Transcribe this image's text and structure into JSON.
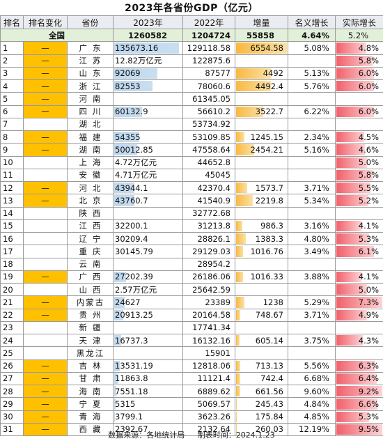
{
  "title": "2023年各省份GDP（亿元）",
  "headers": {
    "rank": "排名",
    "rank_change": "排名变化",
    "province": "省份",
    "gdp_2023": "2023年",
    "gdp_2022": "2022年",
    "increase": "增量",
    "nominal_growth": "名义增长",
    "real_growth": "实际增长"
  },
  "total": {
    "label": "全国",
    "gdp_2023": "1260582",
    "gdp_2022": "1204724",
    "increase": "55858",
    "nominal_growth": "4.64%",
    "real_growth": "5.2%"
  },
  "rows": [
    {
      "rank": "1",
      "change": "—",
      "province": "广东",
      "gdp_2023": "135673.16",
      "gdp_2022": "129118.58",
      "increase": "6554.58",
      "nominal_growth": "5.08%",
      "real_growth": "4.8%",
      "gdp_bar": 0.96,
      "inc_bar": 1.0,
      "real_bar": 0.66
    },
    {
      "rank": "2",
      "change": "—",
      "province": "江苏",
      "gdp_2023": "12.82万亿元",
      "gdp_2022": "122875.6",
      "increase": "",
      "nominal_growth": "",
      "real_growth": "5.8%",
      "gdp_bar": 0.0,
      "inc_bar": 0.0,
      "real_bar": 0.79
    },
    {
      "rank": "3",
      "change": "—",
      "province": "山东",
      "gdp_2023": "92069",
      "gdp_2022": "87577",
      "increase": "4492",
      "nominal_growth": "5.13%",
      "real_growth": "6.0%",
      "gdp_bar": 0.65,
      "inc_bar": 0.69,
      "real_bar": 0.82
    },
    {
      "rank": "4",
      "change": "—",
      "province": "浙江",
      "gdp_2023": "82553",
      "gdp_2022": "78060.6",
      "increase": "4492.4",
      "nominal_growth": "5.76%",
      "real_growth": "6.0%",
      "gdp_bar": 0.58,
      "inc_bar": 0.69,
      "real_bar": 0.82
    },
    {
      "rank": "5",
      "change": "—",
      "province": "河南",
      "gdp_2023": "",
      "gdp_2022": "61345.05",
      "increase": "",
      "nominal_growth": "",
      "real_growth": "",
      "gdp_bar": 0.0,
      "inc_bar": 0.0,
      "real_bar": 0.0
    },
    {
      "rank": "6",
      "change": "—",
      "province": "四川",
      "gdp_2023": "60132.9",
      "gdp_2022": "56610.2",
      "increase": "3522.7",
      "nominal_growth": "6.22%",
      "real_growth": "6.0%",
      "gdp_bar": 0.42,
      "inc_bar": 0.54,
      "real_bar": 0.82
    },
    {
      "rank": "7",
      "change": "",
      "province": "湖北",
      "gdp_2023": "",
      "gdp_2022": "53734.92",
      "increase": "",
      "nominal_growth": "",
      "real_growth": "",
      "gdp_bar": 0.0,
      "inc_bar": 0.0,
      "real_bar": 0.0
    },
    {
      "rank": "8",
      "change": "—",
      "province": "福建",
      "gdp_2023": "54355",
      "gdp_2022": "53109.85",
      "increase": "1245.15",
      "nominal_growth": "2.34%",
      "real_growth": "4.5%",
      "gdp_bar": 0.38,
      "inc_bar": 0.19,
      "real_bar": 0.62
    },
    {
      "rank": "9",
      "change": "—",
      "province": "湖南",
      "gdp_2023": "50012.85",
      "gdp_2022": "47558.64",
      "increase": "2454.21",
      "nominal_growth": "5.16%",
      "real_growth": "4.6%",
      "gdp_bar": 0.35,
      "inc_bar": 0.37,
      "real_bar": 0.63
    },
    {
      "rank": "10",
      "change": "",
      "province": "上海",
      "gdp_2023": "4.72万亿元",
      "gdp_2022": "44652.8",
      "increase": "",
      "nominal_growth": "",
      "real_growth": "5.0%",
      "gdp_bar": 0.0,
      "inc_bar": 0.0,
      "real_bar": 0.68
    },
    {
      "rank": "11",
      "change": "",
      "province": "安徽",
      "gdp_2023": "4.71万亿元",
      "gdp_2022": "45045",
      "increase": "",
      "nominal_growth": "",
      "real_growth": "5.8%",
      "gdp_bar": 0.0,
      "inc_bar": 0.0,
      "real_bar": 0.79
    },
    {
      "rank": "12",
      "change": "—",
      "province": "河北",
      "gdp_2023": "43944.1",
      "gdp_2022": "42370.4",
      "increase": "1573.7",
      "nominal_growth": "3.71%",
      "real_growth": "5.5%",
      "gdp_bar": 0.31,
      "inc_bar": 0.24,
      "real_bar": 0.75
    },
    {
      "rank": "13",
      "change": "—",
      "province": "北京",
      "gdp_2023": "43760.7",
      "gdp_2022": "41540.9",
      "increase": "2219.8",
      "nominal_growth": "5.34%",
      "real_growth": "5.2%",
      "gdp_bar": 0.31,
      "inc_bar": 0.34,
      "real_bar": 0.71
    },
    {
      "rank": "14",
      "change": "",
      "province": "陕西",
      "gdp_2023": "",
      "gdp_2022": "32772.68",
      "increase": "",
      "nominal_growth": "",
      "real_growth": "",
      "gdp_bar": 0.0,
      "inc_bar": 0.0,
      "real_bar": 0.0
    },
    {
      "rank": "15",
      "change": "",
      "province": "江西",
      "gdp_2023": "32200.1",
      "gdp_2022": "31213.8",
      "increase": "986.3",
      "nominal_growth": "3.16%",
      "real_growth": "4.1%",
      "gdp_bar": 0.0,
      "inc_bar": 0.15,
      "real_bar": 0.56
    },
    {
      "rank": "16",
      "change": "",
      "province": "辽宁",
      "gdp_2023": "30209.4",
      "gdp_2022": "28826.1",
      "increase": "1383.3",
      "nominal_growth": "4.80%",
      "real_growth": "5.3%",
      "gdp_bar": 0.0,
      "inc_bar": 0.21,
      "real_bar": 0.72
    },
    {
      "rank": "17",
      "change": "",
      "province": "重庆",
      "gdp_2023": "30145.79",
      "gdp_2022": "29129.03",
      "increase": "1016.76",
      "nominal_growth": "3.49%",
      "real_growth": "6.1%",
      "gdp_bar": 0.0,
      "inc_bar": 0.16,
      "real_bar": 0.83
    },
    {
      "rank": "18",
      "change": "",
      "province": "云南",
      "gdp_2023": "",
      "gdp_2022": "28954.2",
      "increase": "",
      "nominal_growth": "",
      "real_growth": "",
      "gdp_bar": 0.0,
      "inc_bar": 0.0,
      "real_bar": 0.0
    },
    {
      "rank": "19",
      "change": "—",
      "province": "广西",
      "gdp_2023": "27202.39",
      "gdp_2022": "26186.06",
      "increase": "1016.33",
      "nominal_growth": "3.88%",
      "real_growth": "4.1%",
      "gdp_bar": 0.19,
      "inc_bar": 0.16,
      "real_bar": 0.56
    },
    {
      "rank": "20",
      "change": "",
      "province": "山西",
      "gdp_2023": "2.57万亿元",
      "gdp_2022": "25642.59",
      "increase": "",
      "nominal_growth": "",
      "real_growth": "5.0%",
      "gdp_bar": 0.0,
      "inc_bar": 0.0,
      "real_bar": 0.68
    },
    {
      "rank": "21",
      "change": "—",
      "province": "内蒙古",
      "gdp_2023": "24627",
      "gdp_2022": "23389",
      "increase": "1238",
      "nominal_growth": "5.29%",
      "real_growth": "7.3%",
      "gdp_bar": 0.17,
      "inc_bar": 0.19,
      "real_bar": 1.0
    },
    {
      "rank": "22",
      "change": "—",
      "province": "贵州",
      "gdp_2023": "20913.25",
      "gdp_2022": "20164.58",
      "increase": "748.67",
      "nominal_growth": "3.71%",
      "real_growth": "4.9%",
      "gdp_bar": 0.15,
      "inc_bar": 0.11,
      "real_bar": 0.67
    },
    {
      "rank": "23",
      "change": "",
      "province": "新疆",
      "gdp_2023": "",
      "gdp_2022": "17741.34",
      "increase": "",
      "nominal_growth": "",
      "real_growth": "",
      "gdp_bar": 0.0,
      "inc_bar": 0.0,
      "real_bar": 0.0
    },
    {
      "rank": "24",
      "change": "",
      "province": "天津",
      "gdp_2023": "16737.3",
      "gdp_2022": "16132.16",
      "increase": "605.14",
      "nominal_growth": "3.75%",
      "real_growth": "4.3%",
      "gdp_bar": 0.12,
      "inc_bar": 0.09,
      "real_bar": 0.59
    },
    {
      "rank": "25",
      "change": "",
      "province": "黑龙江",
      "gdp_2023": "",
      "gdp_2022": "15901",
      "increase": "",
      "nominal_growth": "",
      "real_growth": "",
      "gdp_bar": 0.0,
      "inc_bar": 0.0,
      "real_bar": 0.0
    },
    {
      "rank": "26",
      "change": "—",
      "province": "吉林",
      "gdp_2023": "13531.19",
      "gdp_2022": "12818.06",
      "increase": "713.13",
      "nominal_growth": "5.56%",
      "real_growth": "6.3%",
      "gdp_bar": 0.1,
      "inc_bar": 0.11,
      "real_bar": 0.86
    },
    {
      "rank": "27",
      "change": "—",
      "province": "甘肃",
      "gdp_2023": "11863.8",
      "gdp_2022": "11121.4",
      "increase": "742.4",
      "nominal_growth": "6.68%",
      "real_growth": "6.4%",
      "gdp_bar": 0.08,
      "inc_bar": 0.11,
      "real_bar": 0.88
    },
    {
      "rank": "28",
      "change": "—",
      "province": "海南",
      "gdp_2023": "7551.18",
      "gdp_2022": "6889.62",
      "increase": "661.56",
      "nominal_growth": "9.60%",
      "real_growth": "9.2%",
      "gdp_bar": 0.05,
      "inc_bar": 0.1,
      "real_bar": 1.0
    },
    {
      "rank": "29",
      "change": "—",
      "province": "宁夏",
      "gdp_2023": "5315",
      "gdp_2022": "5069.57",
      "increase": "245.43",
      "nominal_growth": "4.84%",
      "real_growth": "6.6%",
      "gdp_bar": 0.04,
      "inc_bar": 0.04,
      "real_bar": 0.9
    },
    {
      "rank": "30",
      "change": "—",
      "province": "青海",
      "gdp_2023": "3799.1",
      "gdp_2022": "3623.26",
      "increase": "175.84",
      "nominal_growth": "4.85%",
      "real_growth": "5.3%",
      "gdp_bar": 0.03,
      "inc_bar": 0.03,
      "real_bar": 0.72
    },
    {
      "rank": "31",
      "change": "—",
      "province": "西藏",
      "gdp_2023": "2392.67",
      "gdp_2022": "2132.64",
      "increase": "260.03",
      "nominal_growth": "12.19%",
      "real_growth": "9.5%",
      "gdp_bar": 0.02,
      "inc_bar": 0.04,
      "real_bar": 1.0
    }
  ],
  "footer": {
    "source": "数据来源：各地统计局",
    "made_time": "制表时间：2024.1.23"
  }
}
